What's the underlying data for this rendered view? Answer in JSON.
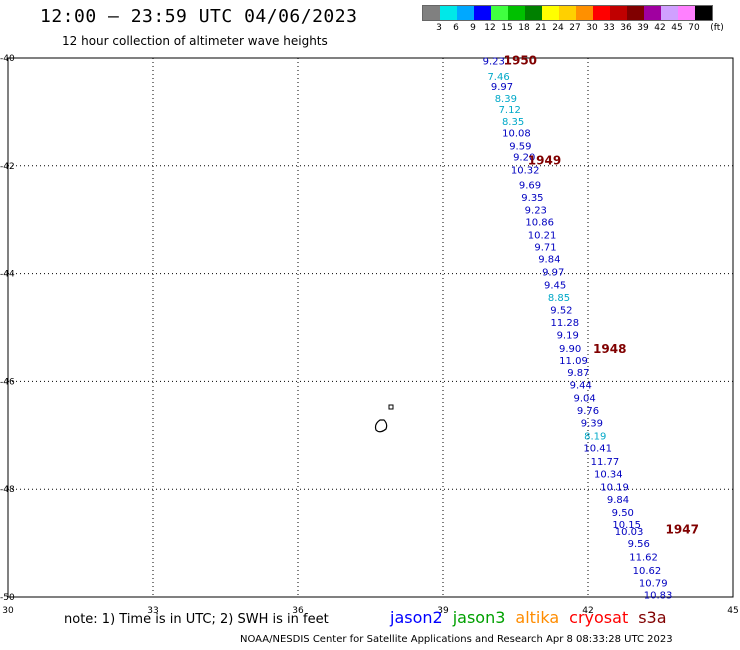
{
  "header": {
    "title": "12:00 – 23:59 UTC 04/06/2023",
    "subtitle": "12 hour collection of altimeter wave heights"
  },
  "legend": {
    "unit_label": "(ft)",
    "bins": [
      {
        "label": "3",
        "color": "#808080"
      },
      {
        "label": "6",
        "color": "#00e8e8"
      },
      {
        "label": "9",
        "color": "#00a8ff"
      },
      {
        "label": "12",
        "color": "#0000ff"
      },
      {
        "label": "15",
        "color": "#40ff40"
      },
      {
        "label": "18",
        "color": "#00c000"
      },
      {
        "label": "21",
        "color": "#008000"
      },
      {
        "label": "24",
        "color": "#ffff00"
      },
      {
        "label": "27",
        "color": "#ffd000"
      },
      {
        "label": "30",
        "color": "#ff9000"
      },
      {
        "label": "33",
        "color": "#ff0000"
      },
      {
        "label": "36",
        "color": "#c00000"
      },
      {
        "label": "39",
        "color": "#800000"
      },
      {
        "label": "42",
        "color": "#a000a0"
      },
      {
        "label": "45",
        "color": "#d0a0ff"
      },
      {
        "label": "70",
        "color": "#ff80ff"
      },
      {
        "label": "",
        "color": "#000000"
      }
    ]
  },
  "map": {
    "lon_ticks": [
      "30",
      "33",
      "36",
      "39",
      "42",
      "45"
    ],
    "lat_ticks": [
      "-40",
      "-42",
      "-44",
      "-46",
      "-48",
      "-50"
    ],
    "lon_range": [
      30,
      45
    ],
    "lat_range": [
      -40,
      -50
    ],
    "track_color_deep": "#0000c0",
    "track_color_light": "#00a8c8",
    "time_label_color": "#800000",
    "observations": [
      {
        "lon": 40.05,
        "lat": -40.05,
        "swh": "9.23",
        "light": false
      },
      {
        "lon": 40.15,
        "lat": -40.33,
        "swh": "7.46",
        "light": true
      },
      {
        "lon": 40.22,
        "lat": -40.52,
        "swh": "9.97",
        "light": false
      },
      {
        "lon": 40.3,
        "lat": -40.74,
        "swh": "8.39",
        "light": true
      },
      {
        "lon": 40.38,
        "lat": -40.95,
        "swh": "7.12",
        "light": true
      },
      {
        "lon": 40.45,
        "lat": -41.17,
        "swh": "8.35",
        "light": true
      },
      {
        "lon": 40.52,
        "lat": -41.38,
        "swh": "10.08",
        "light": false
      },
      {
        "lon": 40.6,
        "lat": -41.62,
        "swh": "9.59",
        "light": false
      },
      {
        "lon": 40.68,
        "lat": -41.83,
        "swh": "9.20",
        "light": false
      },
      {
        "lon": 40.7,
        "lat": -42.07,
        "swh": "10.32",
        "light": false
      },
      {
        "lon": 40.8,
        "lat": -42.35,
        "swh": "9.69",
        "light": false
      },
      {
        "lon": 40.85,
        "lat": -42.58,
        "swh": "9.35",
        "light": false
      },
      {
        "lon": 40.92,
        "lat": -42.81,
        "swh": "9.23",
        "light": false
      },
      {
        "lon": 41.0,
        "lat": -43.03,
        "swh": "10.86",
        "light": false
      },
      {
        "lon": 41.05,
        "lat": -43.27,
        "swh": "10.21",
        "light": false
      },
      {
        "lon": 41.12,
        "lat": -43.5,
        "swh": "9.71",
        "light": false
      },
      {
        "lon": 41.2,
        "lat": -43.72,
        "swh": "9.84",
        "light": false
      },
      {
        "lon": 41.28,
        "lat": -43.96,
        "swh": "9.97",
        "light": false
      },
      {
        "lon": 41.32,
        "lat": -44.2,
        "swh": "9.45",
        "light": false
      },
      {
        "lon": 41.4,
        "lat": -44.43,
        "swh": "8.85",
        "light": true
      },
      {
        "lon": 41.45,
        "lat": -44.67,
        "swh": "9.52",
        "light": false
      },
      {
        "lon": 41.52,
        "lat": -44.9,
        "swh": "11.28",
        "light": false
      },
      {
        "lon": 41.58,
        "lat": -45.13,
        "swh": "9.19",
        "light": false
      },
      {
        "lon": 41.63,
        "lat": -45.38,
        "swh": "9.90",
        "light": false
      },
      {
        "lon": 41.7,
        "lat": -45.6,
        "swh": "11.09",
        "light": false
      },
      {
        "lon": 41.8,
        "lat": -45.83,
        "swh": "9.87",
        "light": false
      },
      {
        "lon": 41.85,
        "lat": -46.06,
        "swh": "9.44",
        "light": false
      },
      {
        "lon": 41.93,
        "lat": -46.3,
        "swh": "9.04",
        "light": false
      },
      {
        "lon": 42.0,
        "lat": -46.53,
        "swh": "9.76",
        "light": false
      },
      {
        "lon": 42.08,
        "lat": -46.76,
        "swh": "9.39",
        "light": false
      },
      {
        "lon": 42.15,
        "lat": -47.0,
        "swh": "8.19",
        "light": true
      },
      {
        "lon": 42.2,
        "lat": -47.23,
        "swh": "10.41",
        "light": false
      },
      {
        "lon": 42.35,
        "lat": -47.48,
        "swh": "11.77",
        "light": false
      },
      {
        "lon": 42.42,
        "lat": -47.71,
        "swh": "10.34",
        "light": false
      },
      {
        "lon": 42.55,
        "lat": -47.95,
        "swh": "10.19",
        "light": false
      },
      {
        "lon": 42.62,
        "lat": -48.18,
        "swh": "9.84",
        "light": false
      },
      {
        "lon": 42.72,
        "lat": -48.42,
        "swh": "9.50",
        "light": false
      },
      {
        "lon": 42.8,
        "lat": -48.65,
        "swh": "10.15",
        "light": false
      },
      {
        "lon": 42.85,
        "lat": -48.78,
        "swh": "10.03",
        "light": false
      },
      {
        "lon": 43.05,
        "lat": -49.0,
        "swh": "9.56",
        "light": false
      },
      {
        "lon": 43.15,
        "lat": -49.25,
        "swh": "11.62",
        "light": false
      },
      {
        "lon": 43.22,
        "lat": -49.5,
        "swh": "10.62",
        "light": false
      },
      {
        "lon": 43.35,
        "lat": -49.73,
        "swh": "10.79",
        "light": false
      },
      {
        "lon": 43.45,
        "lat": -49.95,
        "swh": "10.83",
        "light": false
      }
    ],
    "time_labels": [
      {
        "lon": 40.6,
        "lat": -40.05,
        "text": "1950"
      },
      {
        "lon": 41.1,
        "lat": -41.9,
        "text": "1949"
      },
      {
        "lon": 42.45,
        "lat": -45.4,
        "text": "1948"
      },
      {
        "lon": 43.95,
        "lat": -48.75,
        "text": "1947"
      }
    ]
  },
  "footnote": "note: 1) Time is in UTC; 2) SWH is in feet",
  "satellites": [
    {
      "name": "jason2",
      "color": "#0000ff"
    },
    {
      "name": "jason3",
      "color": "#00a000"
    },
    {
      "name": "altika",
      "color": "#ff8c00"
    },
    {
      "name": "cryosat",
      "color": "#ff0000"
    },
    {
      "name": "s3a",
      "color": "#800000"
    }
  ],
  "credit": "NOAA/NESDIS Center for Satellite Applications and Research    Apr  8 08:33:28 UTC 2023"
}
